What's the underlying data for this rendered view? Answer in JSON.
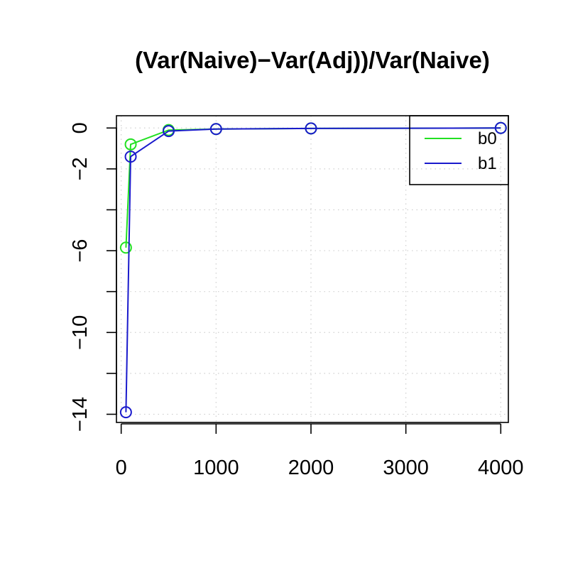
{
  "chart_data": {
    "type": "line",
    "title": "(Var(Naive)−Var(Adj))/Var(Naive)",
    "xlabel": "",
    "ylabel": "",
    "xlim": [
      -50,
      4080
    ],
    "ylim": [
      -14.4,
      0.6
    ],
    "x_ticks": [
      0,
      1000,
      2000,
      3000,
      4000
    ],
    "x_tick_labels": [
      "0",
      "1000",
      "2000",
      "3000",
      "4000"
    ],
    "y_ticks": [
      0,
      -2,
      -4,
      -6,
      -8,
      -10,
      -12,
      -14
    ],
    "y_tick_labels": [
      "0",
      "−2",
      "",
      "−6",
      "",
      "−10",
      "",
      "−14"
    ],
    "grid": true,
    "legend_position": "top-right",
    "x": [
      50,
      100,
      500,
      1000,
      2000,
      4000
    ],
    "series": [
      {
        "name": "b0",
        "color": "#22e022",
        "values": [
          -5.85,
          -0.8,
          -0.1,
          -0.05,
          -0.02,
          0.0
        ]
      },
      {
        "name": "b1",
        "color": "#1a1acc",
        "values": [
          -13.9,
          -1.4,
          -0.15,
          -0.05,
          -0.02,
          0.0
        ]
      }
    ]
  }
}
